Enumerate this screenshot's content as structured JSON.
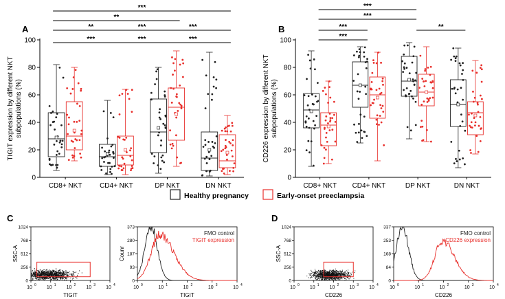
{
  "panel_labels": {
    "A": "A",
    "B": "B",
    "C": "C",
    "D": "D"
  },
  "legend": {
    "healthy": "Healthy pregnancy",
    "eop": "Early-onset preeclampsia"
  },
  "colors": {
    "healthy": "#222222",
    "eop": "#e8302c",
    "significance": "#000000"
  },
  "chart_data": [
    {
      "panel": "A",
      "type": "box",
      "ylabel_line1": "TIGIT expression by different NKT",
      "ylabel_line2": "subpopulations (%)",
      "ylim": [
        0,
        100
      ],
      "yticks": [
        0,
        20,
        40,
        60,
        80,
        100
      ],
      "categories": [
        "CD8+ NKT",
        "CD4+ NKT",
        "DP NKT",
        "DN NKT"
      ],
      "series": [
        {
          "group": "healthy",
          "boxes": [
            {
              "min": 5,
              "q1": 15,
              "median": 28,
              "q3": 47,
              "max": 82,
              "mean": 29
            },
            {
              "min": 2,
              "q1": 8,
              "median": 15,
              "q3": 24,
              "max": 56,
              "mean": 17
            },
            {
              "min": 3,
              "q1": 18,
              "median": 33,
              "q3": 57,
              "max": 80,
              "mean": 36
            },
            {
              "min": 1,
              "q1": 5,
              "median": 14,
              "q3": 33,
              "max": 91,
              "mean": 20
            }
          ]
        },
        {
          "group": "eop",
          "boxes": [
            {
              "min": 12,
              "q1": 20,
              "median": 30,
              "q3": 55,
              "max": 80,
              "mean": 34
            },
            {
              "min": 2,
              "q1": 9,
              "median": 16,
              "q3": 30,
              "max": 64,
              "mean": 20
            },
            {
              "min": 8,
              "q1": 27,
              "median": 51,
              "q3": 65,
              "max": 92,
              "mean": 46
            },
            {
              "min": 2,
              "q1": 7,
              "median": 12,
              "q3": 31,
              "max": 45,
              "mean": 18
            }
          ]
        }
      ],
      "significance": [
        {
          "from": 0,
          "to": 3,
          "label": "***"
        },
        {
          "from": 0,
          "to": 2,
          "label": "**"
        },
        {
          "from": 0,
          "to": 1,
          "label": "**"
        },
        {
          "from": 1,
          "to": 2,
          "label": "***"
        },
        {
          "from": 2,
          "to": 3,
          "label": "***"
        },
        {
          "from": 0,
          "to": 1,
          "label": "***"
        },
        {
          "from": 1,
          "to": 2,
          "label": "***"
        },
        {
          "from": 2,
          "to": 3,
          "label": "***"
        }
      ]
    },
    {
      "panel": "B",
      "type": "box",
      "ylabel_line1": "CD226 expression by different NKT",
      "ylabel_line2": "subpopulations (%)",
      "ylim": [
        0,
        100
      ],
      "yticks": [
        0,
        20,
        40,
        60,
        80,
        100
      ],
      "categories": [
        "CD8+ NKT",
        "CD4+ NKT",
        "DP NKT",
        "DN NKT"
      ],
      "series": [
        {
          "group": "healthy",
          "boxes": [
            {
              "min": 8,
              "q1": 36,
              "median": 49,
              "q3": 61,
              "max": 92,
              "mean": 48
            },
            {
              "min": 25,
              "q1": 51,
              "median": 67,
              "q3": 84,
              "max": 95,
              "mean": 67
            },
            {
              "min": 28,
              "q1": 59,
              "median": 70,
              "q3": 88,
              "max": 98,
              "mean": 71
            },
            {
              "min": 7,
              "q1": 37,
              "median": 53,
              "q3": 71,
              "max": 94,
              "mean": 53
            }
          ]
        },
        {
          "group": "eop",
          "boxes": [
            {
              "min": 10,
              "q1": 23,
              "median": 38,
              "q3": 47,
              "max": 70,
              "mean": 37
            },
            {
              "min": 12,
              "q1": 43,
              "median": 60,
              "q3": 73,
              "max": 91,
              "mean": 58
            },
            {
              "min": 26,
              "q1": 52,
              "median": 62,
              "q3": 75,
              "max": 95,
              "mean": 62
            },
            {
              "min": 17,
              "q1": 31,
              "median": 47,
              "q3": 55,
              "max": 85,
              "mean": 45
            }
          ]
        }
      ],
      "significance": [
        {
          "from": 0,
          "to": 2,
          "label": "***"
        },
        {
          "from": 0,
          "to": 2,
          "label": "***"
        },
        {
          "from": 0,
          "to": 1,
          "label": "***"
        },
        {
          "from": 2,
          "to": 3,
          "label": "**"
        },
        {
          "from": 0,
          "to": 1,
          "label": "***"
        }
      ]
    },
    {
      "panel": "C-left",
      "type": "scatter",
      "xlabel": "TIGIT",
      "ylabel": "SSC-A",
      "xscale": "log",
      "xticks": [
        "10",
        "10",
        "10",
        "10",
        "10"
      ],
      "xtick_exps": [
        "0",
        "1",
        "2",
        "3",
        "4"
      ],
      "yticks": [
        "0",
        "256",
        "512",
        "768",
        "1024"
      ],
      "gate": {
        "x_from_log": 0.3,
        "x_to_log": 3.0,
        "y_from": 70,
        "y_to": 350
      }
    },
    {
      "panel": "C-right",
      "type": "line",
      "xlabel": "TIGIT",
      "ylabel": "Counr",
      "xscale": "log",
      "xtick_exps": [
        "0",
        "1",
        "2",
        "3",
        "4"
      ],
      "yticks": [
        "0",
        "93",
        "187",
        "280",
        "373"
      ],
      "ylim": [
        0,
        373
      ],
      "legend": [
        "FMO control",
        "TIGIT expression"
      ],
      "series": [
        {
          "name": "FMO control",
          "peak_log": 0.55,
          "peak": 373
        },
        {
          "name": "TIGIT expression",
          "peak_log": 0.9,
          "peak": 320
        }
      ]
    },
    {
      "panel": "D-left",
      "type": "scatter",
      "xlabel": "CD226",
      "ylabel": "SSC-A",
      "xscale": "log",
      "xtick_exps": [
        "0",
        "1",
        "2",
        "3",
        "4"
      ],
      "yticks": [
        "0",
        "256",
        "512",
        "768",
        "1024"
      ],
      "gate": {
        "x_from_log": 1.5,
        "x_to_log": 3.0,
        "y_from": 70,
        "y_to": 350
      }
    },
    {
      "panel": "D-right",
      "type": "line",
      "xlabel": "CD226",
      "ylabel": "",
      "xscale": "log",
      "xtick_exps": [
        "0",
        "1",
        "2",
        "3",
        "4"
      ],
      "yticks": [
        "0",
        "84",
        "168",
        "253",
        "337"
      ],
      "ylim": [
        0,
        337
      ],
      "legend": [
        "FMO control",
        "CD226 expression"
      ],
      "series": [
        {
          "name": "FMO control",
          "peak_log": 0.35,
          "peak": 337
        },
        {
          "name": "CD226 expression",
          "peak_log": 1.95,
          "peak": 250
        }
      ]
    }
  ]
}
